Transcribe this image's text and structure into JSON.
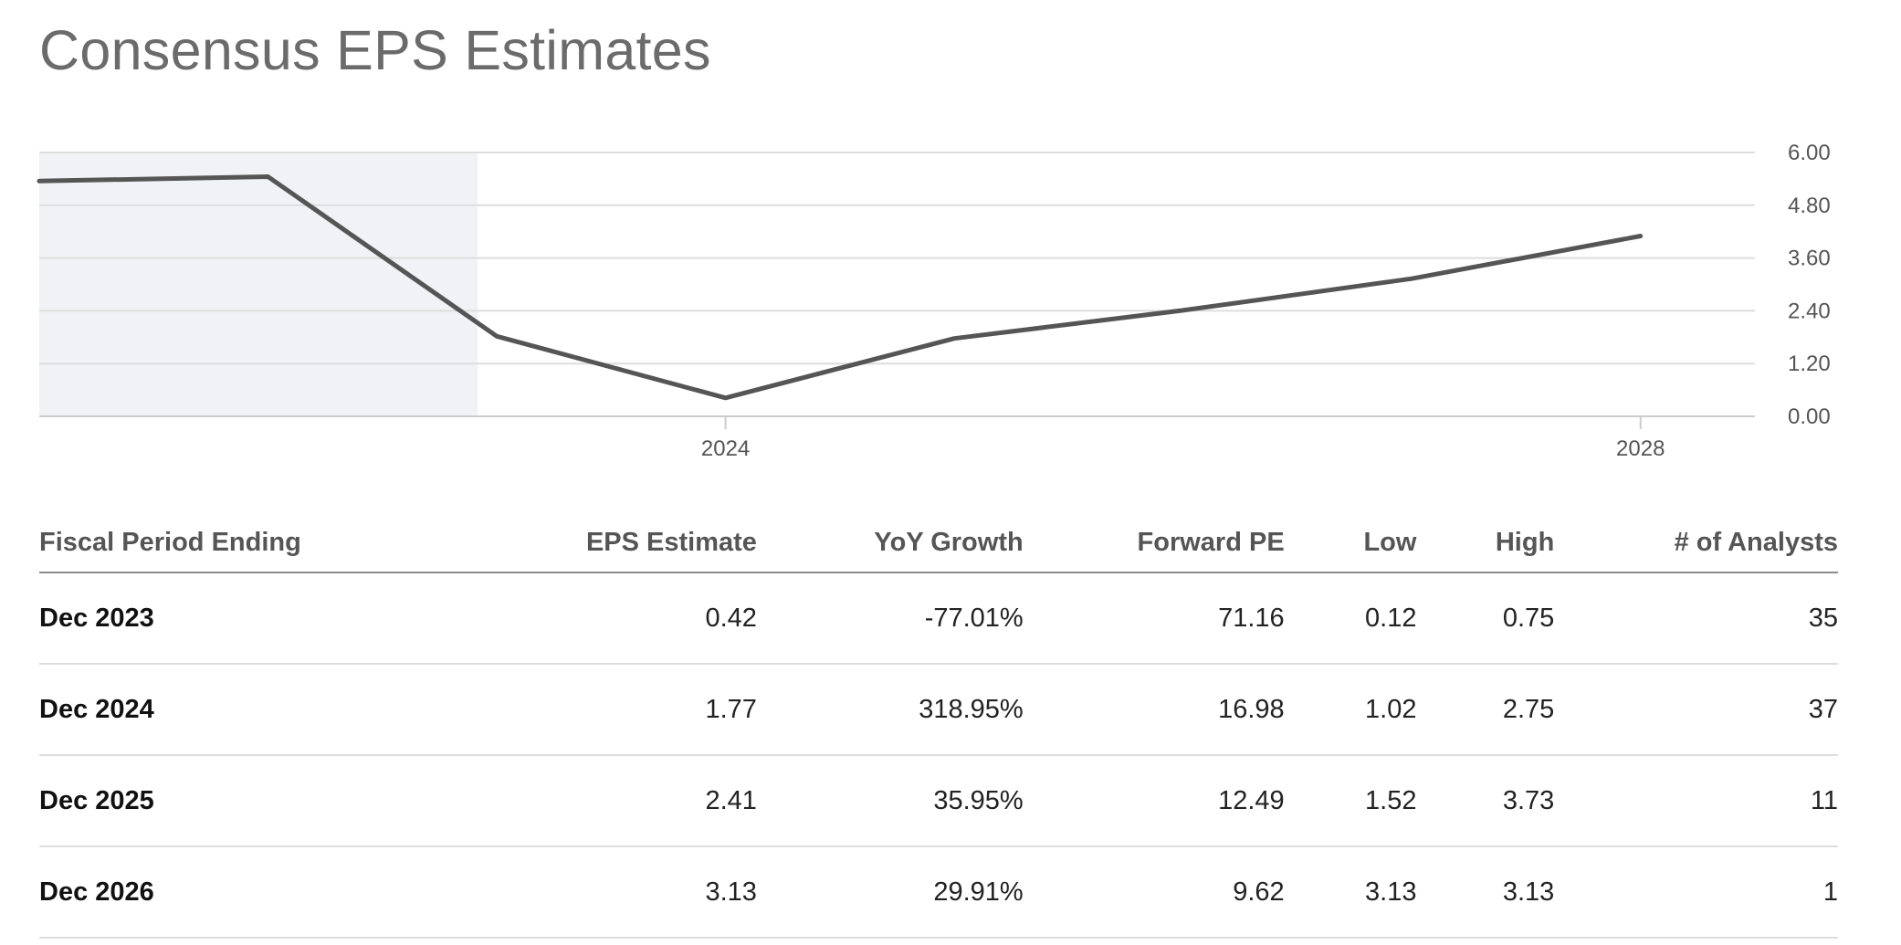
{
  "page": {
    "title": "Consensus EPS Estimates"
  },
  "colors": {
    "line": "#555555",
    "historical_shade": "#f1f2f6",
    "grid": "#dddddd",
    "axis": "#cccccc",
    "tick_text": "#555555",
    "title_text": "#6b6b6b"
  },
  "chart_data": {
    "type": "line",
    "title": "",
    "xlabel": "",
    "ylabel": "",
    "x_tick_labels": [
      "2024",
      "2028"
    ],
    "y_tick_labels": [
      "6.00",
      "4.80",
      "3.60",
      "2.40",
      "1.20",
      "0.00"
    ],
    "y_ticks": [
      6.0,
      4.8,
      3.6,
      2.4,
      1.2,
      0.0
    ],
    "ylim": [
      0,
      6
    ],
    "xlim": [
      "2021-06",
      "2028-12"
    ],
    "y_axis_side": "right",
    "grid": true,
    "legend": "none",
    "historical_region_end": "2023-05",
    "series": [
      {
        "x": [
          "2021-06",
          "2022-06",
          "2023-06",
          "2024-06",
          "2025-06",
          "2026-06",
          "2027-06",
          "2028-06"
        ],
        "y": [
          5.35,
          5.45,
          1.82,
          0.42,
          1.77,
          2.41,
          3.13,
          4.1
        ]
      }
    ]
  },
  "table": {
    "columns": [
      {
        "label": "Fiscal Period Ending",
        "align": "left"
      },
      {
        "label": "EPS Estimate",
        "align": "right"
      },
      {
        "label": "YoY Growth",
        "align": "right"
      },
      {
        "label": "Forward PE",
        "align": "right"
      },
      {
        "label": "Low",
        "align": "right"
      },
      {
        "label": "High",
        "align": "right"
      },
      {
        "label": "# of Analysts",
        "align": "right"
      }
    ],
    "rows": [
      [
        "Dec 2023",
        "0.42",
        "-77.01%",
        "71.16",
        "0.12",
        "0.75",
        "35"
      ],
      [
        "Dec 2024",
        "1.77",
        "318.95%",
        "16.98",
        "1.02",
        "2.75",
        "37"
      ],
      [
        "Dec 2025",
        "2.41",
        "35.95%",
        "12.49",
        "1.52",
        "3.73",
        "11"
      ],
      [
        "Dec 2026",
        "3.13",
        "29.91%",
        "9.62",
        "3.13",
        "3.13",
        "1"
      ]
    ]
  }
}
